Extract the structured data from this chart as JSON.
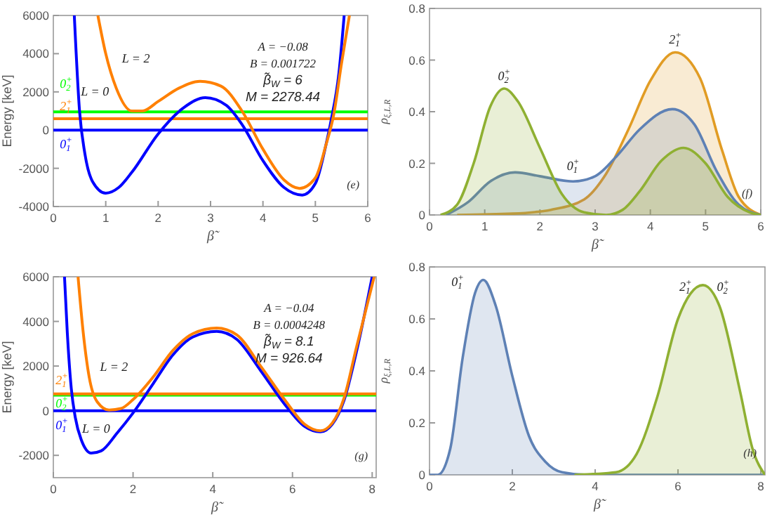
{
  "chart_data": [
    {
      "type": "line",
      "xlabel": "β̃",
      "ylabel": "Energy [keV]",
      "xlim": [
        0,
        6
      ],
      "ylim": [
        -4000,
        6000
      ],
      "xticks": [
        0,
        1,
        2,
        3,
        4,
        5,
        6
      ],
      "yticks": [
        -4000,
        -2000,
        0,
        2000,
        4000,
        6000
      ],
      "series": [
        {
          "name": "0$_{1}$$^{+}$",
          "color": "#0000ff",
          "x": [
            0,
            6
          ],
          "values": [
            0,
            0
          ]
        },
        {
          "name": "2$_{1}$$^{+}$",
          "color": "#ff8000",
          "x": [
            0,
            6
          ],
          "values": [
            600,
            600
          ]
        },
        {
          "name": "0$_{2}$$^{+}$",
          "color": "#00ff00",
          "x": [
            0,
            6
          ],
          "values": [
            950,
            950
          ]
        },
        {
          "name": "L = 0",
          "color": "#0000ff",
          "x": [
            0.4,
            0.5,
            0.6,
            0.75,
            1.0,
            1.25,
            1.5,
            2.0,
            2.5,
            2.9,
            3.3,
            3.6,
            4.0,
            4.4,
            4.75,
            5.0,
            5.2,
            5.3,
            5.45,
            5.55
          ],
          "values": [
            6000,
            1000,
            -1200,
            -2700,
            -3300,
            -3000,
            -2200,
            -200,
            1200,
            1700,
            1300,
            300,
            -1600,
            -3000,
            -3400,
            -2800,
            -800,
            500,
            3000,
            6000
          ]
        },
        {
          "name": "L = 2",
          "color": "#ff8000",
          "x": [
            0.85,
            1.0,
            1.2,
            1.5,
            1.7,
            2.0,
            2.4,
            2.8,
            3.2,
            3.6,
            4.0,
            4.4,
            4.7,
            5.0,
            5.2,
            5.35,
            5.5,
            5.65
          ],
          "values": [
            6000,
            4000,
            2200,
            1000,
            1000,
            1500,
            2200,
            2550,
            2300,
            1000,
            -1000,
            -2600,
            -3050,
            -2500,
            -800,
            800,
            3500,
            6000
          ]
        }
      ],
      "annotations": [
        "A = −0.08",
        "B = 0.001722",
        "β̃$_{W}$ = 6",
        "M = 2278.44",
        "(e)"
      ]
    },
    {
      "type": "area",
      "xlabel": "β̃",
      "ylabel": "ρ$_{ξ,L,R}$",
      "xlim": [
        0,
        6
      ],
      "ylim": [
        0,
        0.8
      ],
      "xticks": [
        0,
        1,
        2,
        3,
        4,
        5,
        6
      ],
      "yticks": [
        0,
        0.2,
        0.4,
        0.6,
        0.8
      ],
      "series": [
        {
          "name": "2$_{1}$$^{+}$",
          "color": "#e19c24",
          "x": [
            0.5,
            1.5,
            2.2,
            2.8,
            3.2,
            3.6,
            4.0,
            4.45,
            4.9,
            5.3,
            5.6,
            6.0
          ],
          "values": [
            0,
            0.005,
            0.02,
            0.06,
            0.16,
            0.33,
            0.52,
            0.63,
            0.53,
            0.25,
            0.07,
            0
          ]
        },
        {
          "name": "0$_{1}$$^{+}$",
          "color": "#5e81b5",
          "x": [
            0.3,
            0.7,
            1.1,
            1.55,
            2.0,
            2.6,
            3.0,
            3.4,
            3.8,
            4.4,
            4.8,
            5.2,
            5.6,
            6.0
          ],
          "values": [
            0,
            0.05,
            0.13,
            0.165,
            0.15,
            0.13,
            0.15,
            0.23,
            0.33,
            0.41,
            0.35,
            0.17,
            0.04,
            0
          ]
        },
        {
          "name": "0$_{2}$$^{+}$",
          "color": "#8fb032",
          "x": [
            0.2,
            0.5,
            0.8,
            1.1,
            1.35,
            1.6,
            2.0,
            2.4,
            2.8,
            3.2,
            3.5,
            3.8,
            4.2,
            4.6,
            5.0,
            5.4,
            5.8,
            6.0
          ],
          "values": [
            0,
            0.04,
            0.2,
            0.42,
            0.49,
            0.44,
            0.26,
            0.08,
            0.01,
            0,
            0.02,
            0.09,
            0.21,
            0.26,
            0.2,
            0.07,
            0.01,
            0
          ]
        }
      ],
      "annotations": [
        "(f)"
      ]
    },
    {
      "type": "line",
      "xlabel": "β̃",
      "ylabel": "Energy [keV]",
      "xlim": [
        0,
        8.1
      ],
      "ylim": [
        -3000,
        6000
      ],
      "xticks": [
        0,
        2,
        4,
        6,
        8
      ],
      "yticks": [
        -2000,
        0,
        2000,
        4000,
        6000
      ],
      "series": [
        {
          "name": "0$_{1}$$^{+}$",
          "color": "#0000ff",
          "x": [
            0,
            8.1
          ],
          "values": [
            0,
            0
          ]
        },
        {
          "name": "0$_{2}$$^{+}$",
          "color": "#00ff00",
          "x": [
            0,
            8.1
          ],
          "values": [
            700,
            700
          ]
        },
        {
          "name": "2$_{1}$$^{+}$",
          "color": "#ff8000",
          "x": [
            0,
            8.1
          ],
          "values": [
            750,
            750
          ]
        },
        {
          "name": "L = 0",
          "color": "#0000ff",
          "x": [
            0.28,
            0.35,
            0.45,
            0.55,
            0.7,
            0.95,
            1.2,
            1.6,
            2.0,
            2.5,
            3.0,
            3.5,
            4.1,
            4.6,
            5.2,
            5.8,
            6.3,
            6.7,
            7.0,
            7.3,
            7.6,
            8.0
          ],
          "values": [
            6000,
            3500,
            1000,
            -300,
            -1300,
            -1900,
            -1800,
            -1000,
            -100,
            1200,
            2500,
            3300,
            3550,
            3200,
            1800,
            300,
            -700,
            -950,
            -600,
            500,
            2600,
            6000
          ]
        },
        {
          "name": "L = 2",
          "color": "#ff8000",
          "x": [
            0.62,
            0.75,
            0.9,
            1.1,
            1.4,
            1.7,
            2.0,
            2.5,
            3.0,
            3.5,
            4.1,
            4.6,
            5.2,
            5.8,
            6.3,
            6.7,
            7.0,
            7.3,
            7.6,
            8.05
          ],
          "values": [
            6000,
            3500,
            1500,
            400,
            30,
            100,
            500,
            1500,
            2700,
            3450,
            3700,
            3400,
            2000,
            500,
            -600,
            -900,
            -550,
            600,
            2800,
            6000
          ]
        }
      ],
      "annotations": [
        "A = −0.04",
        "B = 0.0004248",
        "β̃$_{W}$ = 8.1",
        "M = 926.64",
        "(g)"
      ]
    },
    {
      "type": "area",
      "xlabel": "β̃",
      "ylabel": "ρ$_{ξ,L,R}$",
      "xlim": [
        0,
        8.1
      ],
      "ylim": [
        0,
        0.8
      ],
      "xticks": [
        0,
        2,
        4,
        6,
        8
      ],
      "yticks": [
        0,
        0.2,
        0.4,
        0.6,
        0.8
      ],
      "series": [
        {
          "name": "0$_{1}$$^{+}$",
          "color": "#5e81b5",
          "x": [
            0,
            0.2,
            0.5,
            0.8,
            1.1,
            1.3,
            1.6,
            2.0,
            2.4,
            2.8,
            3.2,
            3.8,
            8.1
          ],
          "values": [
            0,
            0,
            0.1,
            0.45,
            0.7,
            0.75,
            0.65,
            0.38,
            0.15,
            0.05,
            0.01,
            0,
            0
          ]
        },
        {
          "color": "#8fb032",
          "x": [
            3.5,
            4.5,
            5.0,
            5.5,
            6.0,
            6.6,
            7.0,
            7.5,
            7.8,
            8.1
          ],
          "values": [
            0,
            0.01,
            0.08,
            0.3,
            0.6,
            0.73,
            0.65,
            0.32,
            0.1,
            0
          ]
        }
      ],
      "annotations": [
        "(h)",
        {
          "text": "2$_{1}$$^{+}$",
          "x": 6.6,
          "y": 0.73
        },
        {
          "text": "0$_{2}$$^{+}$",
          "x": 6.6,
          "y": 0.73
        }
      ]
    }
  ]
}
